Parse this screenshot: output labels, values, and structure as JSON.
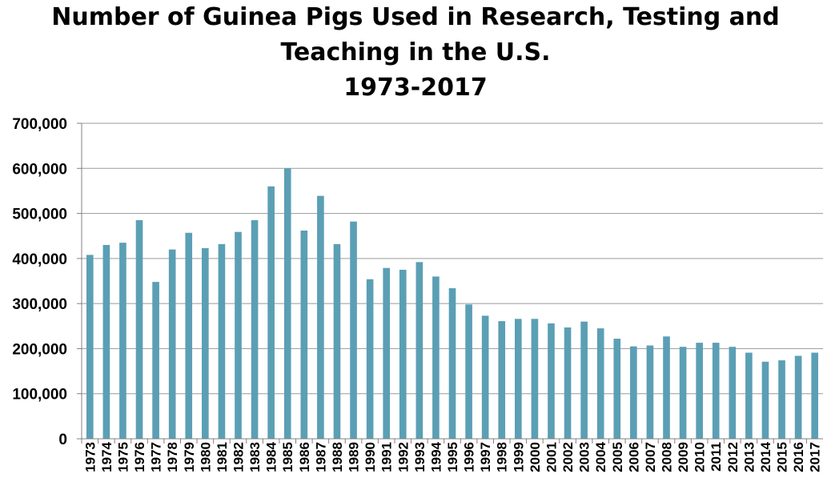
{
  "chart_data": {
    "type": "bar",
    "title": "Number of Guinea Pigs Used in Research, Testing and\nTeaching in the U.S.\n1973-2017",
    "xlabel": "",
    "ylabel": "",
    "ylim": [
      0,
      700000
    ],
    "yticks": [
      0,
      100000,
      200000,
      300000,
      400000,
      500000,
      600000,
      700000
    ],
    "ytick_labels": [
      "0",
      "100,000",
      "200,000",
      "300,000",
      "400,000",
      "500,000",
      "600,000",
      "700,000"
    ],
    "grid": true,
    "legend": "none",
    "bar_color": "#5B9FB5",
    "categories": [
      "1973",
      "1974",
      "1975",
      "1976",
      "1977",
      "1978",
      "1979",
      "1980",
      "1981",
      "1982",
      "1983",
      "1984",
      "1985",
      "1986",
      "1987",
      "1988",
      "1989",
      "1990",
      "1991",
      "1992",
      "1993",
      "1994",
      "1995",
      "1996",
      "1997",
      "1998",
      "1999",
      "2000",
      "2001",
      "2002",
      "2003",
      "2004",
      "2005",
      "2006",
      "2007",
      "2008",
      "2009",
      "2010",
      "2011",
      "2012",
      "2013",
      "2014",
      "2015",
      "2016",
      "2017"
    ],
    "values": [
      408000,
      430000,
      435000,
      485000,
      348000,
      420000,
      457000,
      423000,
      432000,
      459000,
      485000,
      560000,
      600000,
      462000,
      539000,
      432000,
      482000,
      354000,
      379000,
      375000,
      392000,
      360000,
      334000,
      298000,
      273000,
      261000,
      266000,
      266000,
      256000,
      247000,
      260000,
      245000,
      222000,
      205000,
      207000,
      227000,
      204000,
      213000,
      213000,
      204000,
      191000,
      171000,
      174000,
      184000,
      191000
    ]
  }
}
